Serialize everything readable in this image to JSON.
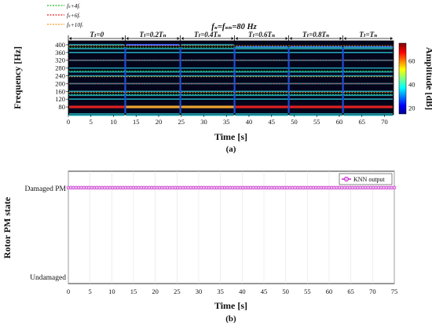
{
  "colors": {
    "legend_green": "#22bb33",
    "legend_red": "#e82020",
    "legend_orange": "#f29a1e",
    "knn_line": "#cc33cc",
    "knn_marker_fill": "#e8b8ee",
    "band_cyan": "#2fd6e6",
    "band_orange": "#e8a030",
    "band_red": "#dd2020",
    "background_dark": "#04051a"
  },
  "panel_a": {
    "legend": [
      {
        "label": "fₛ+4fᵣ",
        "color": "#22bb33"
      },
      {
        "label": "fₛ+6fᵣ",
        "color": "#e82020"
      },
      {
        "label": "fₛ+10fᵣ",
        "color": "#f29a1e"
      }
    ],
    "title": "fₛ=fₛₙ=80 Hz",
    "segments": [
      {
        "label": "Tₗ=0",
        "t0": 0,
        "t1": 12.6
      },
      {
        "label": "Tₗ=0.2Tₙ",
        "t0": 12.6,
        "t1": 24.8
      },
      {
        "label": "Tₗ=0.4Tₙ",
        "t0": 24.8,
        "t1": 36.8
      },
      {
        "label": "Tₗ=0.6Tₙ",
        "t0": 36.8,
        "t1": 48.8
      },
      {
        "label": "Tₗ=0.8Tₙ",
        "t0": 48.8,
        "t1": 60.8
      },
      {
        "label": "Tₗ=Tₙ",
        "t0": 60.8,
        "t1": 72
      }
    ],
    "xlabel": "Time [s]",
    "ylabel": "Frequency [Hz]",
    "colorbar_label": "Amplitude [dB]",
    "xticks": [
      "0",
      "5",
      "10",
      "15",
      "20",
      "25",
      "30",
      "35",
      "40",
      "45",
      "50",
      "55",
      "60",
      "65",
      "70"
    ],
    "yticks": [
      "80",
      "120",
      "160",
      "200",
      "240",
      "280",
      "320",
      "360",
      "400"
    ],
    "cbar_ticks": [
      "20",
      "40",
      "60"
    ],
    "caption": "(a)"
  },
  "panel_b": {
    "legend_label": "KNN output",
    "ylabel": "Rotor PM state",
    "ytick_labels": [
      "Damaged PM",
      "Undamaged"
    ],
    "xticks": [
      "0",
      "5",
      "10",
      "15",
      "20",
      "25",
      "30",
      "35",
      "40",
      "45",
      "50",
      "55",
      "60",
      "65",
      "70",
      "75"
    ],
    "xlabel": "Time [s]",
    "caption": "(b)"
  },
  "chart_data": [
    {
      "type": "heatmap",
      "title": "fₛ=fₛₙ=80 Hz",
      "xlabel": "Time [s]",
      "ylabel": "Frequency [Hz]",
      "colorbar_label": "Amplitude [dB]",
      "xlim": [
        0,
        72
      ],
      "ylim": [
        40,
        420
      ],
      "clim": [
        15,
        75
      ],
      "harmonic_families": [
        {
          "name": "fₛ+4fᵣ",
          "freqs_hz": [
            140,
            260,
            380
          ]
        },
        {
          "name": "fₛ+6fᵣ",
          "freqs_hz": [
            200,
            320
          ]
        },
        {
          "name": "fₛ+10fᵣ",
          "freqs_hz": [
            160,
            240,
            400
          ]
        }
      ],
      "bands_hz": [
        40,
        80,
        120,
        140,
        160,
        200,
        240,
        260,
        280,
        320,
        360,
        380,
        400
      ],
      "load_change_times_s": [
        12.6,
        24.8,
        36.8,
        48.8,
        60.8
      ]
    },
    {
      "type": "line",
      "xlabel": "Time [s]",
      "ylabel": "Rotor PM state",
      "xlim": [
        0,
        75
      ],
      "categories": [
        "Undamaged",
        "Damaged PM"
      ],
      "series": [
        {
          "name": "KNN output",
          "x_start": 0,
          "x_end": 75,
          "state": "Damaged PM"
        }
      ]
    }
  ]
}
